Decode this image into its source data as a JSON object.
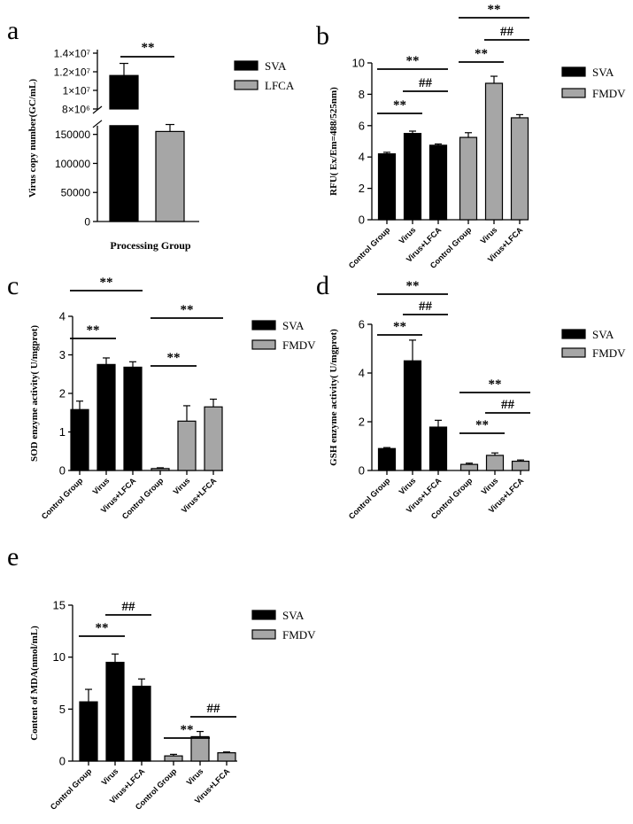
{
  "colors": {
    "svaFill": "#000000",
    "secondFill": "#a6a6a6",
    "axis": "#000000"
  },
  "chart_data": [
    {
      "panel": "a",
      "type": "bar",
      "ylabel": "Virus copy number(GC/mL)",
      "xlabel": "Processing Group",
      "ylim": [
        0,
        180000
      ],
      "y_axis_break": {
        "lower_max": 165000,
        "upper_min": 8000000,
        "upper_max": 14000000
      },
      "yticks_lower": [
        "0",
        "50000",
        "100000",
        "150000"
      ],
      "yticks_upper": [
        "8×10⁶",
        "1×10⁷",
        "1.2×10⁷",
        "1.4×10⁷"
      ],
      "legend": [
        "SVA",
        "LFCA"
      ],
      "series": [
        {
          "name": "SVA",
          "value": 11600000,
          "error": 1300000
        },
        {
          "name": "LFCA",
          "value": 155000,
          "error": 12000
        }
      ],
      "significance": [
        {
          "label": "**",
          "from": 0,
          "to": 1
        }
      ]
    },
    {
      "panel": "b",
      "type": "bar",
      "ylabel": "RFU( Ex/Em=488/525nm)",
      "ylim": [
        0,
        10
      ],
      "yticks": [
        "0",
        "2",
        "4",
        "6",
        "8",
        "10"
      ],
      "categories": [
        "Control Group",
        "Virus",
        "Virus+LFCA"
      ],
      "legend": [
        "SVA",
        "FMDV"
      ],
      "series": [
        {
          "name": "SVA",
          "values": [
            4.2,
            5.5,
            4.75
          ],
          "errors": [
            0.1,
            0.15,
            0.08
          ]
        },
        {
          "name": "FMDV",
          "values": [
            5.25,
            8.7,
            6.5
          ],
          "errors": [
            0.3,
            0.45,
            0.2
          ]
        }
      ],
      "significance": [
        {
          "label": "**",
          "group": 0,
          "from": 0,
          "to": 1
        },
        {
          "label": "##",
          "group": 0,
          "from": 1,
          "to": 2
        },
        {
          "label": "**",
          "group": 0,
          "from": 0,
          "to": 2
        },
        {
          "label": "**",
          "group": 1,
          "from": 0,
          "to": 1
        },
        {
          "label": "##",
          "group": 1,
          "from": 1,
          "to": 2
        },
        {
          "label": "**",
          "group": 1,
          "from": 0,
          "to": 2
        }
      ]
    },
    {
      "panel": "c",
      "type": "bar",
      "ylabel": "SOD enzyme activity( U/mgprot)",
      "ylim": [
        0,
        4
      ],
      "yticks": [
        "0",
        "1",
        "2",
        "3",
        "4"
      ],
      "categories": [
        "Control Group",
        "Virus",
        "Virus+LFCA"
      ],
      "legend": [
        "SVA",
        "FMDV"
      ],
      "series": [
        {
          "name": "SVA",
          "values": [
            1.58,
            2.75,
            2.68
          ],
          "errors": [
            0.22,
            0.17,
            0.14
          ]
        },
        {
          "name": "FMDV",
          "values": [
            0.05,
            1.28,
            1.65
          ],
          "errors": [
            0.02,
            0.4,
            0.2
          ]
        }
      ],
      "significance": [
        {
          "label": "**",
          "group": 0,
          "from": 0,
          "to": 1
        },
        {
          "label": "**",
          "group": 0,
          "from": 0,
          "to": 2
        },
        {
          "label": "**",
          "group": 1,
          "from": 0,
          "to": 1
        },
        {
          "label": "**",
          "group": 1,
          "from": 0,
          "to": 2
        }
      ]
    },
    {
      "panel": "d",
      "type": "bar",
      "ylabel": "GSH enzyme activity( U/mgprot)",
      "ylim": [
        0,
        6
      ],
      "yticks": [
        "0",
        "2",
        "4",
        "6"
      ],
      "categories": [
        "Control Group",
        "Virus",
        "Virus+LFCA"
      ],
      "legend": [
        "SVA",
        "FMDV"
      ],
      "series": [
        {
          "name": "SVA",
          "values": [
            0.9,
            4.5,
            1.78
          ],
          "errors": [
            0.04,
            0.85,
            0.28
          ]
        },
        {
          "name": "FMDV",
          "values": [
            0.25,
            0.62,
            0.38
          ],
          "errors": [
            0.05,
            0.1,
            0.05
          ]
        }
      ],
      "significance": [
        {
          "label": "**",
          "group": 0,
          "from": 0,
          "to": 1
        },
        {
          "label": "##",
          "group": 0,
          "from": 1,
          "to": 2
        },
        {
          "label": "**",
          "group": 0,
          "from": 0,
          "to": 2
        },
        {
          "label": "**",
          "group": 1,
          "from": 0,
          "to": 1
        },
        {
          "label": "##",
          "group": 1,
          "from": 1,
          "to": 2
        },
        {
          "label": "**",
          "group": 1,
          "from": 0,
          "to": 2
        }
      ]
    },
    {
      "panel": "e",
      "type": "bar",
      "ylabel": "Content of MDA(nmol/mL)",
      "ylim": [
        0,
        15
      ],
      "yticks": [
        "0",
        "5",
        "10",
        "15"
      ],
      "categories": [
        "Control Group",
        "Virus",
        "Virus+LFCA"
      ],
      "legend": [
        "SVA",
        "FMDV"
      ],
      "series": [
        {
          "name": "SVA",
          "values": [
            5.7,
            9.5,
            7.2
          ],
          "errors": [
            1.2,
            0.8,
            0.7
          ]
        },
        {
          "name": "FMDV",
          "values": [
            0.5,
            2.35,
            0.8
          ],
          "errors": [
            0.15,
            0.5,
            0.08
          ]
        }
      ],
      "significance": [
        {
          "label": "**",
          "group": 0,
          "from": 0,
          "to": 1
        },
        {
          "label": "##",
          "group": 0,
          "from": 1,
          "to": 2
        },
        {
          "label": "**",
          "group": 1,
          "from": 0,
          "to": 1
        },
        {
          "label": "##",
          "group": 1,
          "from": 1,
          "to": 2
        }
      ]
    }
  ]
}
